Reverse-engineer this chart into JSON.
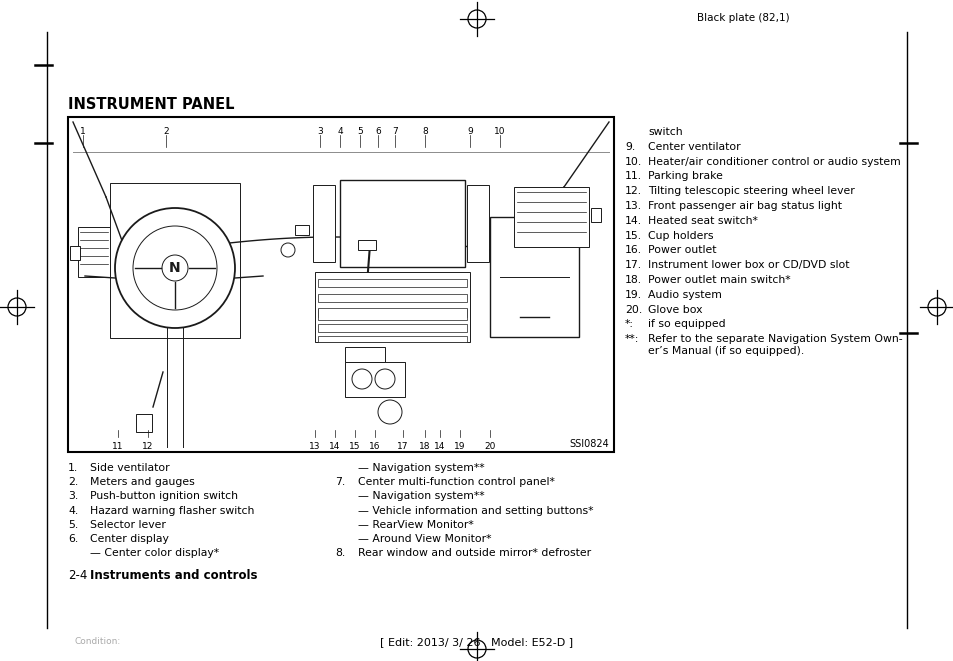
{
  "header_text": "Black plate (82,1)",
  "page_title": "INSTRUMENT PANEL",
  "diagram_label": "SSI0824",
  "right_col": [
    [
      "",
      "switch"
    ],
    [
      "9.",
      "Center ventilator"
    ],
    [
      "10.",
      "Heater/air conditioner control or audio system"
    ],
    [
      "11.",
      "Parking brake"
    ],
    [
      "12.",
      "Tilting telescopic steering wheel lever"
    ],
    [
      "13.",
      "Front passenger air bag status light"
    ],
    [
      "14.",
      "Heated seat switch*"
    ],
    [
      "15.",
      "Cup holders"
    ],
    [
      "16.",
      "Power outlet"
    ],
    [
      "17.",
      "Instrument lower box or CD/DVD slot"
    ],
    [
      "18.",
      "Power outlet main switch*"
    ],
    [
      "19.",
      "Audio system"
    ],
    [
      "20.",
      "Glove box"
    ],
    [
      "*:",
      "if so equipped"
    ],
    [
      "**:",
      "Refer to the separate Navigation System Own-\ner’s Manual (if so equipped)."
    ]
  ],
  "left_col_bottom": [
    [
      "1.",
      "Side ventilator"
    ],
    [
      "2.",
      "Meters and gauges"
    ],
    [
      "3.",
      "Push-button ignition switch"
    ],
    [
      "4.",
      "Hazard warning flasher switch"
    ],
    [
      "5.",
      "Selector lever"
    ],
    [
      "6.",
      "Center display"
    ],
    [
      "",
      "— Center color display*"
    ]
  ],
  "right_col_bottom": [
    [
      "",
      "— Navigation system**"
    ],
    [
      "7.",
      "Center multi-function control panel*"
    ],
    [
      "",
      "— Navigation system**"
    ],
    [
      "",
      "— Vehicle information and setting buttons*"
    ],
    [
      "",
      "— RearView Monitor*"
    ],
    [
      "",
      "— Around View Monitor*"
    ],
    [
      "8.",
      "Rear window and outside mirror* defroster"
    ]
  ],
  "right_col_bottom_bold": [
    false,
    false,
    false,
    false,
    false,
    false,
    false
  ],
  "section_num": "2-4",
  "section_name": "Instruments and controls",
  "footer": "[ Edit: 2013/ 3/ 26   Model: E52-D ]",
  "condition": "Condition:"
}
